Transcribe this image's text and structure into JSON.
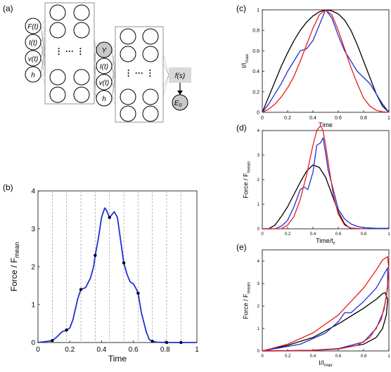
{
  "panels": {
    "a": "(a)",
    "b": "(b)",
    "c": "(c)",
    "d": "(d)",
    "e": "(e)"
  },
  "network": {
    "inputs1": [
      "F(t)",
      "I(t)",
      "v(t)",
      "h"
    ],
    "inputs2": [
      "Y",
      "I(t)",
      "v(t)",
      "h"
    ],
    "function_label": "f(s)",
    "output_label": "E",
    "output_sub": "0",
    "ellipsis": "⋮ ··· ⋮"
  },
  "chart_data": [
    {
      "id": "b",
      "type": "line",
      "xlabel": "Time",
      "ylabel": "Force / F",
      "ylabel_sub": "mean",
      "xlim": [
        0,
        1
      ],
      "ylim": [
        0,
        4
      ],
      "xticks": [
        "0",
        "0.2",
        "0.4",
        "0.6",
        "0.8",
        "1"
      ],
      "yticks": [
        "0",
        "1",
        "2",
        "3",
        "4"
      ],
      "vlines": [
        0.09,
        0.18,
        0.27,
        0.36,
        0.45,
        0.54,
        0.63,
        0.72,
        0.81,
        0.9
      ],
      "series": [
        {
          "color": "#1f2fd6",
          "x": [
            0.0,
            0.04,
            0.09,
            0.12,
            0.15,
            0.18,
            0.2,
            0.22,
            0.25,
            0.27,
            0.3,
            0.33,
            0.35,
            0.36,
            0.38,
            0.4,
            0.42,
            0.43,
            0.44,
            0.45,
            0.46,
            0.48,
            0.5,
            0.52,
            0.54,
            0.56,
            0.58,
            0.6,
            0.62,
            0.63,
            0.65,
            0.68,
            0.7,
            0.72,
            0.75,
            0.8,
            0.85,
            0.9,
            0.95,
            1.0
          ],
          "y": [
            0.0,
            0.02,
            0.05,
            0.15,
            0.28,
            0.33,
            0.38,
            0.6,
            1.15,
            1.4,
            1.45,
            1.7,
            2.0,
            2.3,
            2.75,
            3.3,
            3.55,
            3.5,
            3.4,
            3.3,
            3.35,
            3.45,
            3.3,
            2.7,
            2.1,
            1.8,
            1.6,
            1.55,
            1.4,
            1.3,
            0.8,
            0.3,
            0.08,
            0.03,
            0.01,
            0.0,
            0.0,
            0.0,
            0.0,
            0.0
          ]
        }
      ],
      "markers": {
        "x": [
          0.09,
          0.18,
          0.27,
          0.36,
          0.45,
          0.54,
          0.63,
          0.72,
          0.81,
          0.9
        ],
        "y": [
          0.05,
          0.33,
          1.4,
          2.3,
          3.3,
          2.1,
          1.3,
          0.03,
          0.0,
          0.0
        ]
      }
    },
    {
      "id": "c",
      "type": "line",
      "xlabel": "Time",
      "ylabel": "I/I",
      "ylabel_sub": "max",
      "xlim": [
        0,
        1
      ],
      "ylim": [
        0,
        1
      ],
      "xticks": [
        "0",
        "0.2",
        "0.4",
        "0.6",
        "0.8",
        "1"
      ],
      "yticks": [
        "0",
        "0.2",
        "0.4",
        "0.6",
        "0.8",
        "1"
      ],
      "series": [
        {
          "color": "#000000",
          "x": [
            0.0,
            0.05,
            0.1,
            0.15,
            0.2,
            0.25,
            0.3,
            0.35,
            0.4,
            0.45,
            0.5,
            0.55,
            0.6,
            0.65,
            0.7,
            0.75,
            0.8,
            0.85,
            0.9,
            0.95,
            1.0
          ],
          "y": [
            0.0,
            0.15,
            0.3,
            0.45,
            0.58,
            0.7,
            0.8,
            0.88,
            0.94,
            0.98,
            1.0,
            0.99,
            0.96,
            0.9,
            0.8,
            0.66,
            0.5,
            0.34,
            0.18,
            0.06,
            0.0
          ]
        },
        {
          "color": "#1f2fd6",
          "x": [
            0.0,
            0.05,
            0.1,
            0.15,
            0.2,
            0.25,
            0.3,
            0.35,
            0.4,
            0.45,
            0.5,
            0.55,
            0.6,
            0.65,
            0.7,
            0.75,
            0.8,
            0.85,
            0.9,
            0.95,
            1.0
          ],
          "y": [
            0.0,
            0.08,
            0.18,
            0.28,
            0.4,
            0.5,
            0.6,
            0.62,
            0.7,
            0.85,
            1.0,
            0.92,
            0.75,
            0.6,
            0.5,
            0.4,
            0.34,
            0.28,
            0.18,
            0.08,
            0.0
          ]
        },
        {
          "color": "#e81c1c",
          "x": [
            0.0,
            0.05,
            0.1,
            0.15,
            0.2,
            0.25,
            0.3,
            0.35,
            0.4,
            0.45,
            0.5,
            0.55,
            0.6,
            0.65,
            0.7,
            0.75,
            0.8,
            0.85,
            0.9,
            0.95,
            1.0
          ],
          "y": [
            0.0,
            0.03,
            0.08,
            0.15,
            0.24,
            0.35,
            0.5,
            0.66,
            0.82,
            0.95,
            1.0,
            0.95,
            0.8,
            0.62,
            0.44,
            0.28,
            0.14,
            0.06,
            0.02,
            0.005,
            0.0
          ]
        }
      ]
    },
    {
      "id": "d",
      "type": "line",
      "xlabel": "Time/t",
      "xlabel_sub": "c",
      "ylabel": "Force / F",
      "ylabel_sub": "mean",
      "xlim": [
        0,
        1
      ],
      "ylim": [
        0,
        4
      ],
      "xticks": [
        "0",
        "0.2",
        "0.4",
        "0.6",
        "0.8",
        "1"
      ],
      "yticks": [
        "0",
        "1",
        "2",
        "3",
        "4"
      ],
      "series": [
        {
          "color": "#000000",
          "x": [
            0.0,
            0.05,
            0.1,
            0.15,
            0.2,
            0.25,
            0.3,
            0.35,
            0.4,
            0.45,
            0.5,
            0.55,
            0.6,
            0.65,
            0.7
          ],
          "y": [
            0.0,
            0.0,
            0.15,
            0.5,
            0.9,
            1.4,
            1.9,
            2.35,
            2.6,
            2.5,
            2.1,
            1.4,
            0.7,
            0.2,
            0.0
          ]
        },
        {
          "color": "#1f2fd6",
          "x": [
            0.0,
            0.1,
            0.15,
            0.2,
            0.25,
            0.3,
            0.33,
            0.36,
            0.4,
            0.43,
            0.46,
            0.48,
            0.5,
            0.52,
            0.55,
            0.6,
            0.65,
            0.7,
            0.75,
            0.8,
            0.9,
            1.0
          ],
          "y": [
            0.0,
            0.0,
            0.1,
            0.35,
            0.9,
            1.6,
            1.7,
            1.6,
            2.3,
            3.4,
            3.5,
            3.7,
            3.1,
            2.4,
            1.8,
            0.8,
            0.4,
            0.2,
            0.1,
            0.05,
            0.02,
            0.02
          ]
        },
        {
          "color": "#e81c1c",
          "x": [
            0.0,
            0.15,
            0.2,
            0.25,
            0.3,
            0.35,
            0.4,
            0.43,
            0.46,
            0.48,
            0.5,
            0.53,
            0.56,
            0.6,
            0.65,
            0.7,
            0.8
          ],
          "y": [
            0.0,
            0.0,
            0.15,
            0.5,
            1.2,
            2.2,
            3.4,
            4.0,
            4.2,
            4.0,
            3.4,
            2.4,
            1.4,
            0.6,
            0.15,
            0.03,
            0.0
          ]
        }
      ]
    },
    {
      "id": "e",
      "type": "line",
      "xlabel": "I/I",
      "xlabel_sub": "max",
      "ylabel": "Force / F",
      "ylabel_sub": "mean",
      "xlim": [
        0,
        1
      ],
      "ylim": [
        0,
        4.5
      ],
      "xticks": [
        "0",
        "0.2",
        "0.4",
        "0.6",
        "0.8",
        "1"
      ],
      "yticks": [
        "0",
        "1",
        "2",
        "3",
        "4"
      ],
      "series": [
        {
          "color": "#000000",
          "x": [
            0.0,
            0.2,
            0.4,
            0.6,
            0.8,
            0.9,
            0.95,
            0.97,
            0.99,
            0.98,
            0.95,
            0.9,
            0.8,
            0.6,
            0.4,
            0.2,
            0.0
          ],
          "y": [
            0.0,
            0.25,
            0.6,
            1.2,
            1.9,
            2.3,
            2.55,
            2.6,
            2.3,
            1.6,
            1.0,
            0.6,
            0.3,
            0.1,
            0.03,
            0.01,
            0.0
          ],
          "closed": false
        },
        {
          "color": "#1f2fd6",
          "x": [
            0.0,
            0.3,
            0.5,
            0.6,
            0.65,
            0.7,
            0.8,
            0.9,
            0.95,
            0.99,
            0.99,
            0.96,
            0.9,
            0.8,
            0.6,
            0.4,
            0.2,
            0.0
          ],
          "y": [
            0.0,
            0.3,
            0.8,
            1.3,
            1.7,
            1.7,
            2.2,
            2.8,
            3.3,
            3.7,
            2.8,
            1.8,
            1.0,
            0.4,
            0.1,
            0.03,
            0.01,
            0.0
          ],
          "closed": false
        },
        {
          "color": "#e81c1c",
          "x": [
            0.0,
            0.2,
            0.4,
            0.6,
            0.8,
            0.9,
            0.95,
            0.99,
            1.0,
            0.98,
            0.94,
            0.85,
            0.75,
            0.6,
            0.4,
            0.2,
            0.0
          ],
          "y": [
            0.0,
            0.3,
            0.8,
            1.6,
            2.8,
            3.6,
            4.05,
            4.2,
            3.6,
            2.4,
            1.4,
            0.6,
            0.25,
            0.08,
            0.02,
            0.0,
            0.0
          ],
          "closed": false
        }
      ]
    }
  ]
}
